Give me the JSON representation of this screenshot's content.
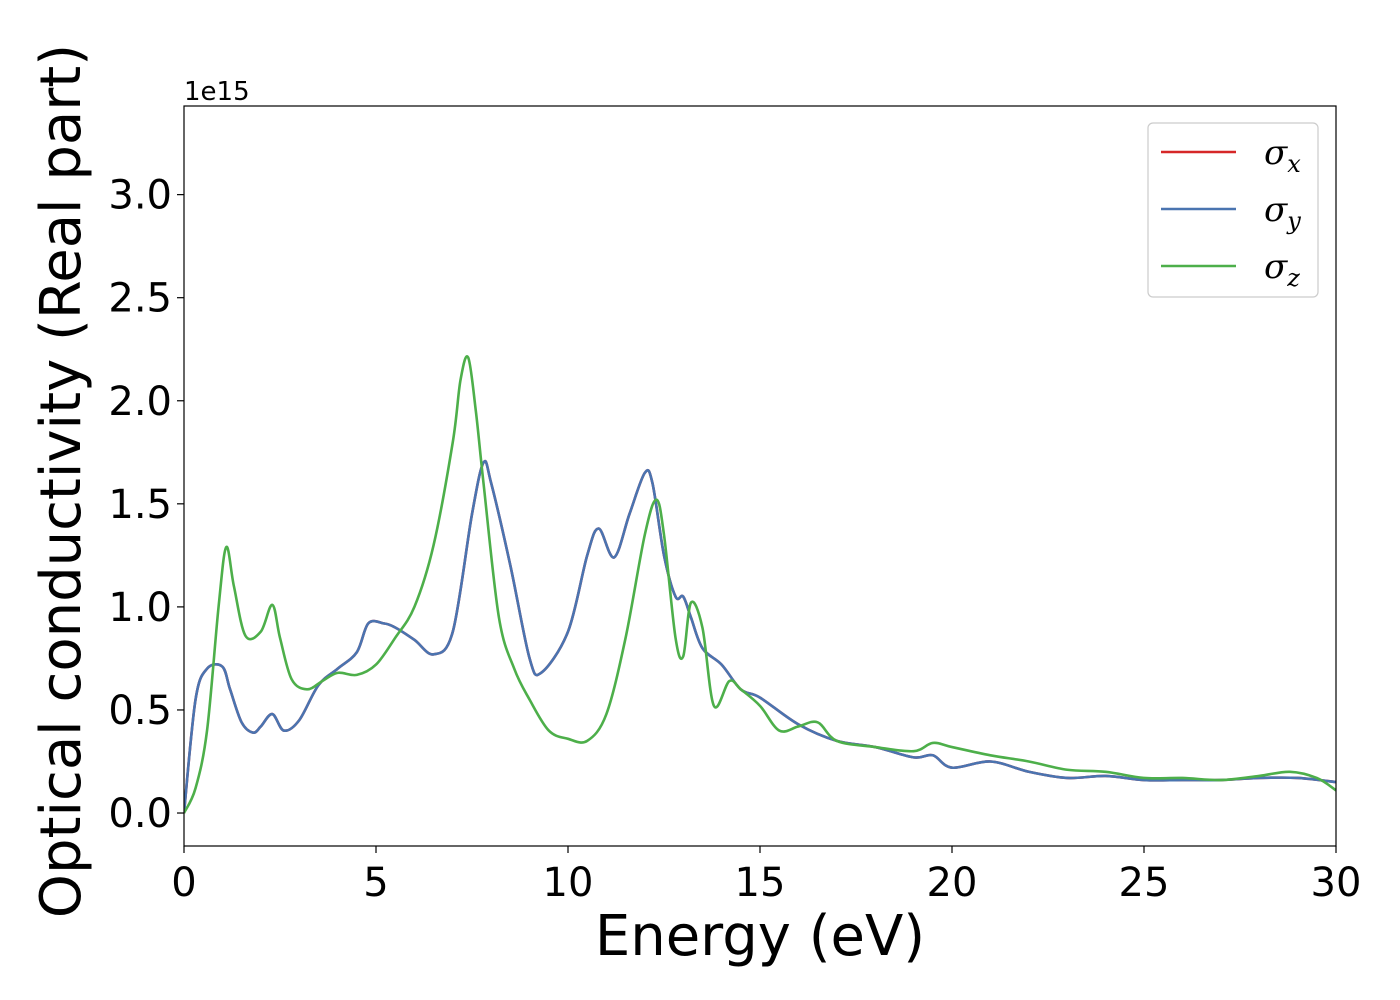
{
  "chart_data": {
    "type": "line",
    "xlabel": "Energy (eV)",
    "ylabel": "Optical conductivity (Real part)",
    "y_offset_label": "1e15",
    "xlim": [
      0,
      30
    ],
    "ylim": [
      -0.16,
      3.43
    ],
    "xticks": [
      0,
      5,
      10,
      15,
      20,
      25,
      30
    ],
    "xtick_labels": [
      "0",
      "5",
      "10",
      "15",
      "20",
      "25",
      "30"
    ],
    "yticks": [
      0.0,
      0.5,
      1.0,
      1.5,
      2.0,
      2.5,
      3.0
    ],
    "ytick_labels": [
      "0.0",
      "0.5",
      "1.0",
      "1.5",
      "2.0",
      "2.5",
      "3.0"
    ],
    "grid": false,
    "legend_position": "top-right",
    "series": [
      {
        "name": "σ",
        "subscript": "x",
        "color": "#d62728",
        "x": [
          0,
          0.3,
          0.6,
          1.0,
          1.2,
          1.5,
          1.8,
          2.0,
          2.3,
          2.6,
          3.0,
          3.5,
          4.0,
          4.5,
          4.8,
          5.2,
          5.5,
          6.0,
          6.5,
          7.0,
          7.5,
          7.8,
          8.0,
          8.5,
          9.0,
          9.3,
          10.0,
          10.5,
          10.8,
          11.2,
          11.6,
          12.0,
          12.2,
          12.5,
          12.8,
          13.0,
          13.2,
          13.5,
          14.0,
          14.5,
          15.0,
          16.0,
          17.0,
          18.0,
          19.0,
          19.5,
          20.0,
          21.0,
          22.0,
          23.0,
          24.0,
          25.0,
          26.0,
          27.0,
          28.0,
          29.0,
          30.0
        ],
        "values": [
          0.0,
          0.55,
          0.7,
          0.71,
          0.6,
          0.44,
          0.39,
          0.42,
          0.48,
          0.4,
          0.45,
          0.62,
          0.7,
          0.78,
          0.92,
          0.92,
          0.9,
          0.84,
          0.77,
          0.88,
          1.45,
          1.7,
          1.6,
          1.2,
          0.75,
          0.68,
          0.88,
          1.25,
          1.38,
          1.24,
          1.45,
          1.65,
          1.6,
          1.25,
          1.05,
          1.05,
          0.95,
          0.8,
          0.72,
          0.6,
          0.56,
          0.43,
          0.35,
          0.32,
          0.27,
          0.28,
          0.22,
          0.25,
          0.2,
          0.17,
          0.18,
          0.16,
          0.16,
          0.16,
          0.17,
          0.17,
          0.15
        ]
      },
      {
        "name": "σ",
        "subscript": "y",
        "color": "#4a74b0",
        "x": [
          0,
          0.3,
          0.6,
          1.0,
          1.2,
          1.5,
          1.8,
          2.0,
          2.3,
          2.6,
          3.0,
          3.5,
          4.0,
          4.5,
          4.8,
          5.2,
          5.5,
          6.0,
          6.5,
          7.0,
          7.5,
          7.8,
          8.0,
          8.5,
          9.0,
          9.3,
          10.0,
          10.5,
          10.8,
          11.2,
          11.6,
          12.0,
          12.2,
          12.5,
          12.8,
          13.0,
          13.2,
          13.5,
          14.0,
          14.5,
          15.0,
          16.0,
          17.0,
          18.0,
          19.0,
          19.5,
          20.0,
          21.0,
          22.0,
          23.0,
          24.0,
          25.0,
          26.0,
          27.0,
          28.0,
          29.0,
          30.0
        ],
        "values": [
          0.0,
          0.55,
          0.7,
          0.71,
          0.6,
          0.44,
          0.39,
          0.42,
          0.48,
          0.4,
          0.45,
          0.62,
          0.7,
          0.78,
          0.92,
          0.92,
          0.9,
          0.84,
          0.77,
          0.88,
          1.45,
          1.7,
          1.6,
          1.2,
          0.75,
          0.68,
          0.88,
          1.25,
          1.38,
          1.24,
          1.45,
          1.65,
          1.6,
          1.25,
          1.05,
          1.05,
          0.95,
          0.8,
          0.72,
          0.6,
          0.56,
          0.43,
          0.35,
          0.32,
          0.27,
          0.28,
          0.22,
          0.25,
          0.2,
          0.17,
          0.18,
          0.16,
          0.16,
          0.16,
          0.17,
          0.17,
          0.15
        ]
      },
      {
        "name": "σ",
        "subscript": "z",
        "color": "#4daf4a",
        "x": [
          0,
          0.3,
          0.6,
          0.9,
          1.1,
          1.3,
          1.6,
          2.0,
          2.3,
          2.5,
          2.8,
          3.2,
          3.6,
          4.0,
          4.5,
          5.0,
          5.5,
          6.0,
          6.5,
          7.0,
          7.2,
          7.4,
          7.6,
          7.8,
          8.2,
          8.6,
          9.0,
          9.5,
          10.0,
          10.5,
          11.0,
          11.5,
          12.0,
          12.3,
          12.5,
          12.8,
          13.0,
          13.2,
          13.5,
          13.8,
          14.2,
          14.5,
          15.0,
          15.5,
          16.0,
          16.5,
          17.0,
          18.0,
          19.0,
          19.5,
          20.0,
          21.0,
          22.0,
          23.0,
          24.0,
          25.0,
          26.0,
          27.0,
          28.0,
          28.8,
          29.5,
          30.0
        ],
        "values": [
          0.0,
          0.12,
          0.4,
          1.0,
          1.29,
          1.1,
          0.86,
          0.88,
          1.01,
          0.85,
          0.65,
          0.6,
          0.64,
          0.68,
          0.67,
          0.72,
          0.85,
          1.0,
          1.3,
          1.8,
          2.1,
          2.21,
          1.95,
          1.6,
          0.95,
          0.7,
          0.55,
          0.4,
          0.36,
          0.35,
          0.48,
          0.85,
          1.35,
          1.52,
          1.35,
          0.85,
          0.76,
          1.02,
          0.9,
          0.52,
          0.64,
          0.6,
          0.52,
          0.4,
          0.42,
          0.44,
          0.35,
          0.32,
          0.3,
          0.34,
          0.32,
          0.28,
          0.25,
          0.21,
          0.2,
          0.17,
          0.17,
          0.16,
          0.18,
          0.2,
          0.17,
          0.11
        ]
      }
    ]
  }
}
